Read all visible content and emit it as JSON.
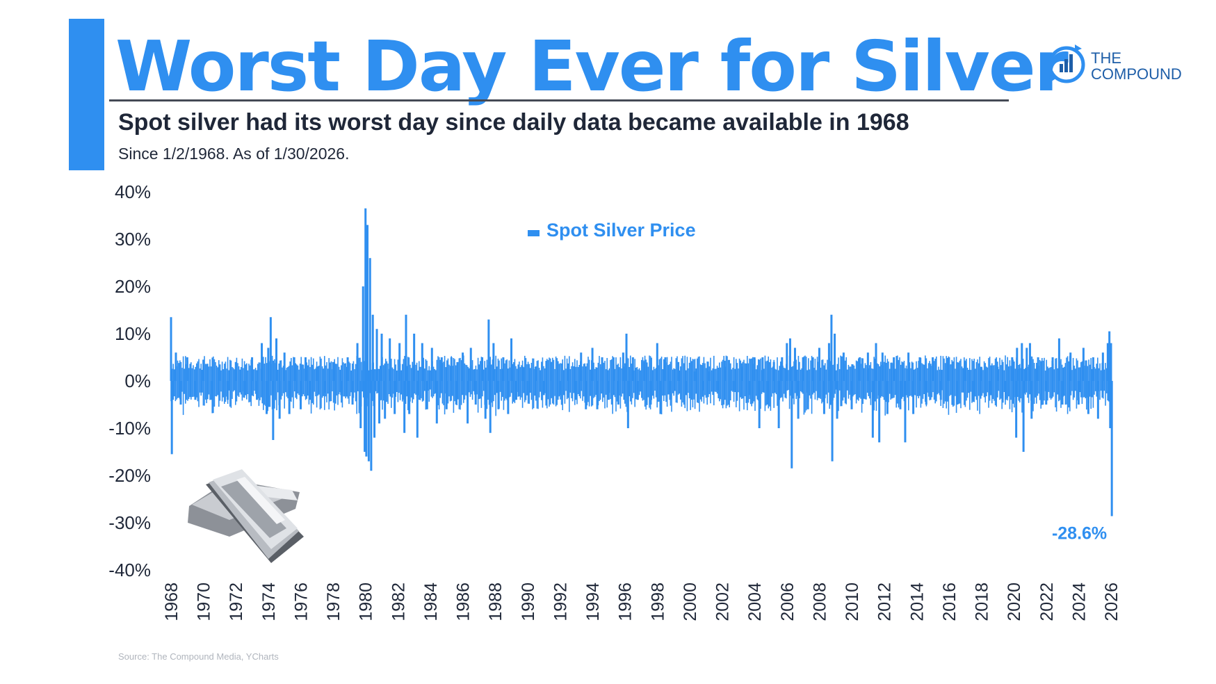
{
  "header": {
    "title": "Worst Day Ever for Silver",
    "subtitle": "Spot silver had its worst day since daily data became available in 1968",
    "date_range": "Since 1/2/1968. As of 1/30/2026."
  },
  "brand": {
    "line1": "THE",
    "line2": "COMPOUND"
  },
  "footer": {
    "source": "Source: The Compound Media, YCharts"
  },
  "colors": {
    "accent": "#2f8ff0",
    "brand": "#1e5ea8",
    "text": "#1f2738"
  },
  "chart_data": {
    "type": "line",
    "title": "",
    "xlabel": "",
    "ylabel": "",
    "ylim": [
      -40,
      40
    ],
    "xlim": [
      1968,
      2026
    ],
    "grid": false,
    "legend": {
      "position": "top-center",
      "entries": [
        "Spot Silver Price"
      ]
    },
    "y_ticks": [
      {
        "value": 40,
        "label": "40%"
      },
      {
        "value": 30,
        "label": "30%"
      },
      {
        "value": 20,
        "label": "20%"
      },
      {
        "value": 10,
        "label": "10%"
      },
      {
        "value": 0,
        "label": "0%"
      },
      {
        "value": -10,
        "label": "-10%"
      },
      {
        "value": -20,
        "label": "-20%"
      },
      {
        "value": -30,
        "label": "-30%"
      },
      {
        "value": -40,
        "label": "-40%"
      }
    ],
    "x_ticks": [
      "1968",
      "1970",
      "1972",
      "1974",
      "1976",
      "1978",
      "1980",
      "1982",
      "1984",
      "1986",
      "1988",
      "1990",
      "1992",
      "1994",
      "1996",
      "1998",
      "2000",
      "2002",
      "2004",
      "2006",
      "2008",
      "2010",
      "2012",
      "2014",
      "2016",
      "2018",
      "2020",
      "2022",
      "2024",
      "2026"
    ],
    "series": [
      {
        "name": "Spot Silver Price",
        "color": "#2f8ff0",
        "points": [
          [
            1968.0,
            13.5
          ],
          [
            1968.05,
            -15.5
          ],
          [
            1968.3,
            6
          ],
          [
            1968.6,
            -5
          ],
          [
            1969.0,
            5
          ],
          [
            1969.5,
            -4
          ],
          [
            1970.0,
            4.5
          ],
          [
            1970.5,
            -4
          ],
          [
            1971.0,
            3.5
          ],
          [
            1971.5,
            -4
          ],
          [
            1972.0,
            4
          ],
          [
            1972.5,
            -3.5
          ],
          [
            1973.0,
            5
          ],
          [
            1973.3,
            -4
          ],
          [
            1973.6,
            8
          ],
          [
            1973.9,
            -7
          ],
          [
            1974.0,
            7
          ],
          [
            1974.15,
            13.5
          ],
          [
            1974.3,
            -12.5
          ],
          [
            1974.5,
            9
          ],
          [
            1974.7,
            -8
          ],
          [
            1975.0,
            6
          ],
          [
            1975.3,
            -7
          ],
          [
            1975.6,
            5
          ],
          [
            1976.0,
            -6
          ],
          [
            1976.3,
            5
          ],
          [
            1976.6,
            -4
          ],
          [
            1977.0,
            3
          ],
          [
            1977.5,
            -2.5
          ],
          [
            1978.0,
            4
          ],
          [
            1978.5,
            -3
          ],
          [
            1978.9,
            5
          ],
          [
            1979.2,
            -5
          ],
          [
            1979.5,
            8
          ],
          [
            1979.7,
            -10
          ],
          [
            1979.85,
            20
          ],
          [
            1979.95,
            -15
          ],
          [
            1980.0,
            36.5
          ],
          [
            1980.05,
            -16
          ],
          [
            1980.12,
            33
          ],
          [
            1980.2,
            -17
          ],
          [
            1980.28,
            26
          ],
          [
            1980.35,
            -19
          ],
          [
            1980.45,
            14
          ],
          [
            1980.55,
            -12
          ],
          [
            1980.7,
            11
          ],
          [
            1980.85,
            -9
          ],
          [
            1981.0,
            10
          ],
          [
            1981.2,
            -8
          ],
          [
            1981.5,
            9
          ],
          [
            1981.8,
            -7
          ],
          [
            1982.1,
            8
          ],
          [
            1982.4,
            -11
          ],
          [
            1982.5,
            14
          ],
          [
            1982.7,
            -7
          ],
          [
            1983.0,
            10
          ],
          [
            1983.2,
            -12
          ],
          [
            1983.5,
            8
          ],
          [
            1983.8,
            -6
          ],
          [
            1984.1,
            7
          ],
          [
            1984.4,
            -9
          ],
          [
            1984.7,
            5
          ],
          [
            1985.0,
            -6
          ],
          [
            1985.3,
            5
          ],
          [
            1985.6,
            -5
          ],
          [
            1986.0,
            6
          ],
          [
            1986.3,
            -9
          ],
          [
            1986.5,
            7
          ],
          [
            1986.8,
            -5
          ],
          [
            1987.2,
            5
          ],
          [
            1987.4,
            -8
          ],
          [
            1987.6,
            13
          ],
          [
            1987.7,
            -11
          ],
          [
            1987.9,
            8
          ],
          [
            1988.2,
            -6
          ],
          [
            1988.5,
            5
          ],
          [
            1988.8,
            -7
          ],
          [
            1989.0,
            9
          ],
          [
            1989.3,
            -4
          ],
          [
            1989.7,
            3
          ],
          [
            1990.0,
            -3
          ],
          [
            1990.5,
            3
          ],
          [
            1991.0,
            -3
          ],
          [
            1991.5,
            4
          ],
          [
            1992.0,
            -3
          ],
          [
            1992.5,
            3
          ],
          [
            1993.0,
            -4
          ],
          [
            1993.3,
            6
          ],
          [
            1993.6,
            -6
          ],
          [
            1994.0,
            7
          ],
          [
            1994.3,
            -6
          ],
          [
            1994.6,
            5
          ],
          [
            1995.0,
            -4
          ],
          [
            1995.3,
            5
          ],
          [
            1995.6,
            -5
          ],
          [
            1995.9,
            6
          ],
          [
            1996.1,
            10
          ],
          [
            1996.2,
            -10
          ],
          [
            1996.5,
            5
          ],
          [
            1996.8,
            -4
          ],
          [
            1997.2,
            4
          ],
          [
            1997.6,
            -5
          ],
          [
            1998.0,
            8
          ],
          [
            1998.2,
            -7
          ],
          [
            1998.5,
            5
          ],
          [
            1998.8,
            -4
          ],
          [
            1999.3,
            4
          ],
          [
            1999.8,
            -3
          ],
          [
            2000.3,
            2
          ],
          [
            2000.8,
            -2
          ],
          [
            2001.2,
            2
          ],
          [
            2001.7,
            -2
          ],
          [
            2002.2,
            3
          ],
          [
            2002.7,
            -2
          ],
          [
            2003.2,
            3
          ],
          [
            2003.7,
            -3
          ],
          [
            2004.0,
            5
          ],
          [
            2004.3,
            -10
          ],
          [
            2004.5,
            5
          ],
          [
            2004.8,
            -5
          ],
          [
            2005.2,
            4
          ],
          [
            2005.5,
            -10
          ],
          [
            2005.7,
            5
          ],
          [
            2006.0,
            8
          ],
          [
            2006.2,
            9
          ],
          [
            2006.3,
            -18.5
          ],
          [
            2006.5,
            7
          ],
          [
            2006.7,
            -8
          ],
          [
            2007.0,
            5
          ],
          [
            2007.3,
            -6
          ],
          [
            2007.6,
            5
          ],
          [
            2008.0,
            7
          ],
          [
            2008.3,
            -7
          ],
          [
            2008.6,
            8
          ],
          [
            2008.75,
            14
          ],
          [
            2008.8,
            -17
          ],
          [
            2008.95,
            10
          ],
          [
            2009.1,
            -8
          ],
          [
            2009.5,
            6
          ],
          [
            2010.0,
            -6
          ],
          [
            2010.5,
            5
          ],
          [
            2011.0,
            6
          ],
          [
            2011.3,
            -12
          ],
          [
            2011.5,
            8
          ],
          [
            2011.7,
            -13
          ],
          [
            2011.9,
            6
          ],
          [
            2012.2,
            -7
          ],
          [
            2012.6,
            5
          ],
          [
            2013.0,
            -6
          ],
          [
            2013.3,
            -13
          ],
          [
            2013.5,
            6
          ],
          [
            2013.8,
            -7
          ],
          [
            2014.2,
            5
          ],
          [
            2014.6,
            -5
          ],
          [
            2015.0,
            5
          ],
          [
            2015.5,
            -4
          ],
          [
            2016.0,
            5
          ],
          [
            2016.5,
            -5
          ],
          [
            2017.0,
            4
          ],
          [
            2017.5,
            -4
          ],
          [
            2018.0,
            3
          ],
          [
            2018.5,
            -3
          ],
          [
            2019.0,
            3
          ],
          [
            2019.5,
            -4
          ],
          [
            2019.9,
            5
          ],
          [
            2020.15,
            -12
          ],
          [
            2020.2,
            7
          ],
          [
            2020.5,
            8
          ],
          [
            2020.6,
            -15
          ],
          [
            2020.8,
            7
          ],
          [
            2021.0,
            8
          ],
          [
            2021.1,
            -8
          ],
          [
            2021.5,
            5
          ],
          [
            2022.0,
            -5
          ],
          [
            2022.4,
            5
          ],
          [
            2022.8,
            9
          ],
          [
            2023.0,
            -5
          ],
          [
            2023.5,
            6
          ],
          [
            2024.0,
            -5
          ],
          [
            2024.3,
            7
          ],
          [
            2024.6,
            -7
          ],
          [
            2024.9,
            5
          ],
          [
            2025.2,
            -8
          ],
          [
            2025.5,
            6
          ],
          [
            2025.8,
            8
          ],
          [
            2025.9,
            10.5
          ],
          [
            2025.95,
            -10
          ],
          [
            2026.0,
            8
          ],
          [
            2026.05,
            -28.6
          ]
        ]
      }
    ],
    "annotations": [
      {
        "text": "-28.6%",
        "x": 2026.05,
        "y": -28.6
      }
    ]
  }
}
